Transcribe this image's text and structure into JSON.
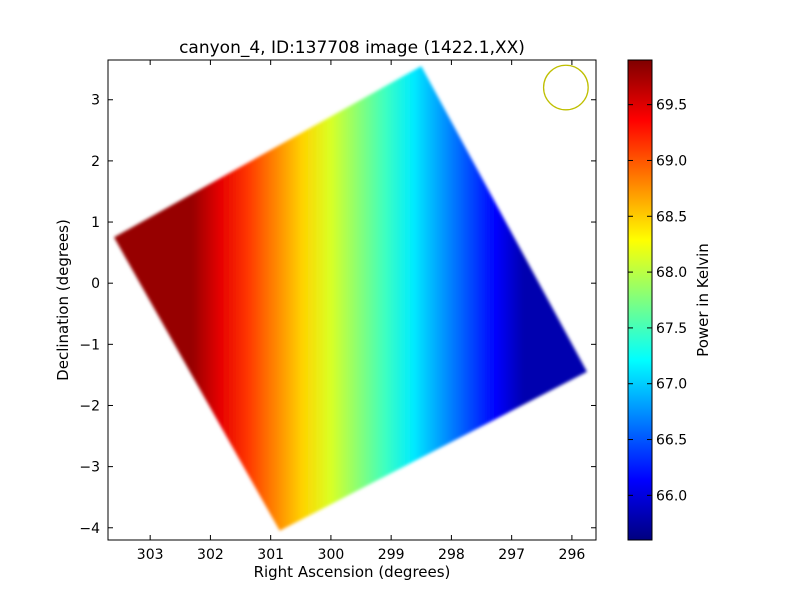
{
  "chart_data": {
    "type": "heatmap",
    "title": "canyon_4, ID:137708 image (1422.1,XX)",
    "xlabel": "Right Ascension (degrees)",
    "ylabel": "Declination (degrees)",
    "colorbar_label": "Power in Kelvin",
    "xlim": [
      303.7,
      295.6
    ],
    "ylim": [
      -4.2,
      3.65
    ],
    "x_ticks": [
      303,
      302,
      301,
      300,
      299,
      298,
      297,
      296
    ],
    "x_tick_labels": [
      "303",
      "302",
      "301",
      "300",
      "299",
      "298",
      "297",
      "296"
    ],
    "y_ticks": [
      3,
      2,
      1,
      0,
      -1,
      -2,
      -3,
      -4
    ],
    "y_tick_labels": [
      "3",
      "2",
      "1",
      "0",
      "−1",
      "−2",
      "−3",
      "−4"
    ],
    "colorbar_range": [
      65.6,
      69.9
    ],
    "colorbar_ticks": [
      69.5,
      69.0,
      68.5,
      68.0,
      67.5,
      67.0,
      66.5,
      66.0
    ],
    "colorbar_tick_labels": [
      "69.5",
      "69.0",
      "68.5",
      "68.0",
      "67.5",
      "67.0",
      "66.5",
      "66.0"
    ],
    "colormap": "jet",
    "colormap_stops": [
      "#00007f",
      "#0000ff",
      "#007fff",
      "#00ffff",
      "#7fff7f",
      "#ffff00",
      "#ff7f00",
      "#ff0000",
      "#7f0000"
    ],
    "region_corners_radec": [
      {
        "ra": 303.6,
        "dec": 0.75
      },
      {
        "ra": 298.5,
        "dec": 3.55
      },
      {
        "ra": 295.75,
        "dec": -1.45
      },
      {
        "ra": 300.85,
        "dec": -4.05
      }
    ],
    "color_gradient": {
      "direction": "east-to-west",
      "start_ra": 302.3,
      "start_value": 69.8,
      "end_ra": 296.8,
      "end_value": 65.8
    },
    "beam_circle": {
      "ra": 296.1,
      "dec": 3.2,
      "radius_deg": 0.37,
      "color": "#bfbf00"
    },
    "grid": false
  }
}
